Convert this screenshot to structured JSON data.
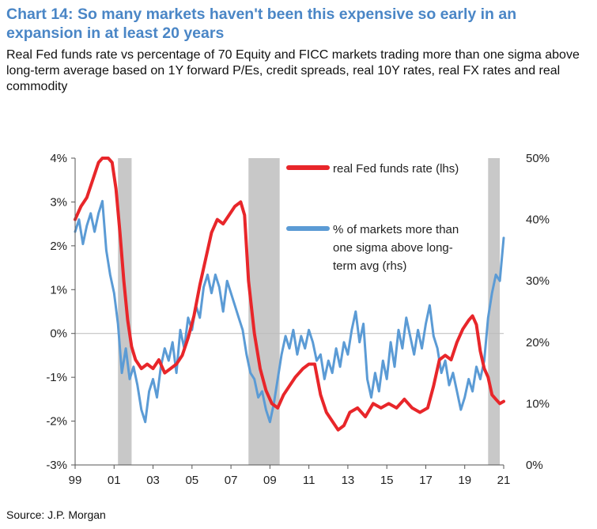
{
  "header": {
    "title": "Chart 14: So many markets haven't been this expensive so early in an expansion in at least 20 years",
    "subtitle": "Real Fed funds rate vs percentage of 70 Equity and FICC markets trading more than one sigma above long-term average based on 1Y forward P/Es, credit spreads, real 10Y rates, real FX rates and real commodity"
  },
  "source": "Source: J.P. Morgan",
  "chart_data": {
    "type": "line",
    "x_ticks": [
      "99",
      "01",
      "03",
      "05",
      "07",
      "09",
      "11",
      "13",
      "15",
      "17",
      "19",
      "21"
    ],
    "x_range": [
      1999,
      2021
    ],
    "y_left": {
      "ticks": [
        "4%",
        "3%",
        "2%",
        "1%",
        "0%",
        "-1%",
        "-2%",
        "-3%"
      ],
      "range": [
        -3,
        4
      ]
    },
    "y_right": {
      "ticks": [
        "50%",
        "40%",
        "30%",
        "20%",
        "10%",
        "0%"
      ],
      "range": [
        0,
        50
      ]
    },
    "recessions": [
      [
        2001.2,
        2001.9
      ],
      [
        2007.9,
        2009.5
      ],
      [
        2020.2,
        2020.8
      ]
    ],
    "colors": {
      "fed": "#e8262a",
      "markets": "#5b9bd5",
      "recession": "#c8c8c8"
    },
    "series": [
      {
        "name": "real Fed funds rate (lhs)",
        "axis": "left",
        "points": [
          [
            1999.0,
            2.6
          ],
          [
            1999.3,
            2.9
          ],
          [
            1999.6,
            3.1
          ],
          [
            1999.9,
            3.5
          ],
          [
            2000.2,
            3.9
          ],
          [
            2000.4,
            4.0
          ],
          [
            2000.7,
            4.0
          ],
          [
            2000.9,
            3.9
          ],
          [
            2001.1,
            3.3
          ],
          [
            2001.3,
            2.3
          ],
          [
            2001.5,
            1.2
          ],
          [
            2001.7,
            0.3
          ],
          [
            2001.9,
            -0.3
          ],
          [
            2002.1,
            -0.6
          ],
          [
            2002.4,
            -0.8
          ],
          [
            2002.7,
            -0.7
          ],
          [
            2003.0,
            -0.8
          ],
          [
            2003.3,
            -0.6
          ],
          [
            2003.6,
            -0.9
          ],
          [
            2003.9,
            -0.8
          ],
          [
            2004.2,
            -0.7
          ],
          [
            2004.5,
            -0.5
          ],
          [
            2004.8,
            -0.1
          ],
          [
            2005.1,
            0.4
          ],
          [
            2005.4,
            1.1
          ],
          [
            2005.7,
            1.7
          ],
          [
            2006.0,
            2.3
          ],
          [
            2006.3,
            2.6
          ],
          [
            2006.6,
            2.5
          ],
          [
            2006.9,
            2.7
          ],
          [
            2007.2,
            2.9
          ],
          [
            2007.5,
            3.0
          ],
          [
            2007.7,
            2.7
          ],
          [
            2007.9,
            1.2
          ],
          [
            2008.2,
            0.0
          ],
          [
            2008.5,
            -0.8
          ],
          [
            2008.8,
            -1.3
          ],
          [
            2009.1,
            -1.6
          ],
          [
            2009.4,
            -1.7
          ],
          [
            2009.7,
            -1.4
          ],
          [
            2010.0,
            -1.2
          ],
          [
            2010.3,
            -1.0
          ],
          [
            2010.7,
            -0.8
          ],
          [
            2011.0,
            -0.7
          ],
          [
            2011.3,
            -0.7
          ],
          [
            2011.6,
            -1.4
          ],
          [
            2011.9,
            -1.8
          ],
          [
            2012.2,
            -2.0
          ],
          [
            2012.5,
            -2.2
          ],
          [
            2012.8,
            -2.1
          ],
          [
            2013.1,
            -1.8
          ],
          [
            2013.5,
            -1.7
          ],
          [
            2013.9,
            -1.9
          ],
          [
            2014.3,
            -1.6
          ],
          [
            2014.7,
            -1.7
          ],
          [
            2015.1,
            -1.6
          ],
          [
            2015.5,
            -1.7
          ],
          [
            2015.9,
            -1.5
          ],
          [
            2016.3,
            -1.7
          ],
          [
            2016.7,
            -1.8
          ],
          [
            2017.1,
            -1.7
          ],
          [
            2017.4,
            -1.2
          ],
          [
            2017.7,
            -0.6
          ],
          [
            2018.0,
            -0.5
          ],
          [
            2018.3,
            -0.6
          ],
          [
            2018.6,
            -0.2
          ],
          [
            2018.9,
            0.1
          ],
          [
            2019.2,
            0.3
          ],
          [
            2019.4,
            0.4
          ],
          [
            2019.6,
            0.2
          ],
          [
            2019.8,
            -0.4
          ],
          [
            2020.0,
            -0.8
          ],
          [
            2020.2,
            -1.0
          ],
          [
            2020.4,
            -1.4
          ],
          [
            2020.6,
            -1.5
          ],
          [
            2020.8,
            -1.6
          ],
          [
            2021.0,
            -1.55
          ]
        ]
      },
      {
        "name": "% of markets more than one sigma above long-term avg (rhs)",
        "axis": "right",
        "points": [
          [
            1999.0,
            38
          ],
          [
            1999.2,
            40
          ],
          [
            1999.4,
            36
          ],
          [
            1999.6,
            39
          ],
          [
            1999.8,
            41
          ],
          [
            2000.0,
            38
          ],
          [
            2000.2,
            41
          ],
          [
            2000.4,
            43
          ],
          [
            2000.6,
            35
          ],
          [
            2000.8,
            31
          ],
          [
            2001.0,
            28
          ],
          [
            2001.2,
            23
          ],
          [
            2001.4,
            15
          ],
          [
            2001.6,
            19
          ],
          [
            2001.8,
            14
          ],
          [
            2002.0,
            16
          ],
          [
            2002.2,
            13
          ],
          [
            2002.4,
            9
          ],
          [
            2002.6,
            7
          ],
          [
            2002.8,
            12
          ],
          [
            2003.0,
            14
          ],
          [
            2003.2,
            11
          ],
          [
            2003.4,
            16
          ],
          [
            2003.6,
            19
          ],
          [
            2003.8,
            17
          ],
          [
            2004.0,
            20
          ],
          [
            2004.2,
            15
          ],
          [
            2004.4,
            22
          ],
          [
            2004.6,
            19
          ],
          [
            2004.8,
            24
          ],
          [
            2005.0,
            22
          ],
          [
            2005.2,
            26
          ],
          [
            2005.4,
            24
          ],
          [
            2005.6,
            29
          ],
          [
            2005.8,
            31
          ],
          [
            2006.0,
            28
          ],
          [
            2006.2,
            31
          ],
          [
            2006.4,
            29
          ],
          [
            2006.6,
            25
          ],
          [
            2006.8,
            30
          ],
          [
            2007.0,
            28
          ],
          [
            2007.2,
            26
          ],
          [
            2007.4,
            24
          ],
          [
            2007.6,
            22
          ],
          [
            2007.8,
            18
          ],
          [
            2008.0,
            15
          ],
          [
            2008.2,
            14
          ],
          [
            2008.4,
            11
          ],
          [
            2008.6,
            12
          ],
          [
            2008.8,
            9
          ],
          [
            2009.0,
            7
          ],
          [
            2009.2,
            10
          ],
          [
            2009.4,
            14
          ],
          [
            2009.6,
            18
          ],
          [
            2009.8,
            21
          ],
          [
            2010.0,
            19
          ],
          [
            2010.2,
            22
          ],
          [
            2010.4,
            18
          ],
          [
            2010.6,
            21
          ],
          [
            2010.8,
            19
          ],
          [
            2011.0,
            22
          ],
          [
            2011.2,
            20
          ],
          [
            2011.4,
            17
          ],
          [
            2011.6,
            18
          ],
          [
            2011.8,
            14
          ],
          [
            2012.0,
            17
          ],
          [
            2012.2,
            15
          ],
          [
            2012.4,
            19
          ],
          [
            2012.6,
            16
          ],
          [
            2012.8,
            20
          ],
          [
            2013.0,
            18
          ],
          [
            2013.2,
            22
          ],
          [
            2013.4,
            25
          ],
          [
            2013.6,
            20
          ],
          [
            2013.8,
            23
          ],
          [
            2014.0,
            14
          ],
          [
            2014.2,
            11
          ],
          [
            2014.4,
            15
          ],
          [
            2014.6,
            12
          ],
          [
            2014.8,
            17
          ],
          [
            2015.0,
            14
          ],
          [
            2015.2,
            20
          ],
          [
            2015.4,
            16
          ],
          [
            2015.6,
            22
          ],
          [
            2015.8,
            19
          ],
          [
            2016.0,
            24
          ],
          [
            2016.2,
            21
          ],
          [
            2016.4,
            18
          ],
          [
            2016.6,
            22
          ],
          [
            2016.8,
            19
          ],
          [
            2017.0,
            23
          ],
          [
            2017.2,
            26
          ],
          [
            2017.4,
            21
          ],
          [
            2017.6,
            19
          ],
          [
            2017.8,
            15
          ],
          [
            2018.0,
            17
          ],
          [
            2018.2,
            13
          ],
          [
            2018.4,
            15
          ],
          [
            2018.6,
            12
          ],
          [
            2018.8,
            9
          ],
          [
            2019.0,
            11
          ],
          [
            2019.2,
            14
          ],
          [
            2019.4,
            12
          ],
          [
            2019.6,
            16
          ],
          [
            2019.8,
            14
          ],
          [
            2020.0,
            17
          ],
          [
            2020.2,
            24
          ],
          [
            2020.4,
            28
          ],
          [
            2020.6,
            31
          ],
          [
            2020.8,
            30
          ],
          [
            2021.0,
            37
          ]
        ]
      }
    ]
  }
}
